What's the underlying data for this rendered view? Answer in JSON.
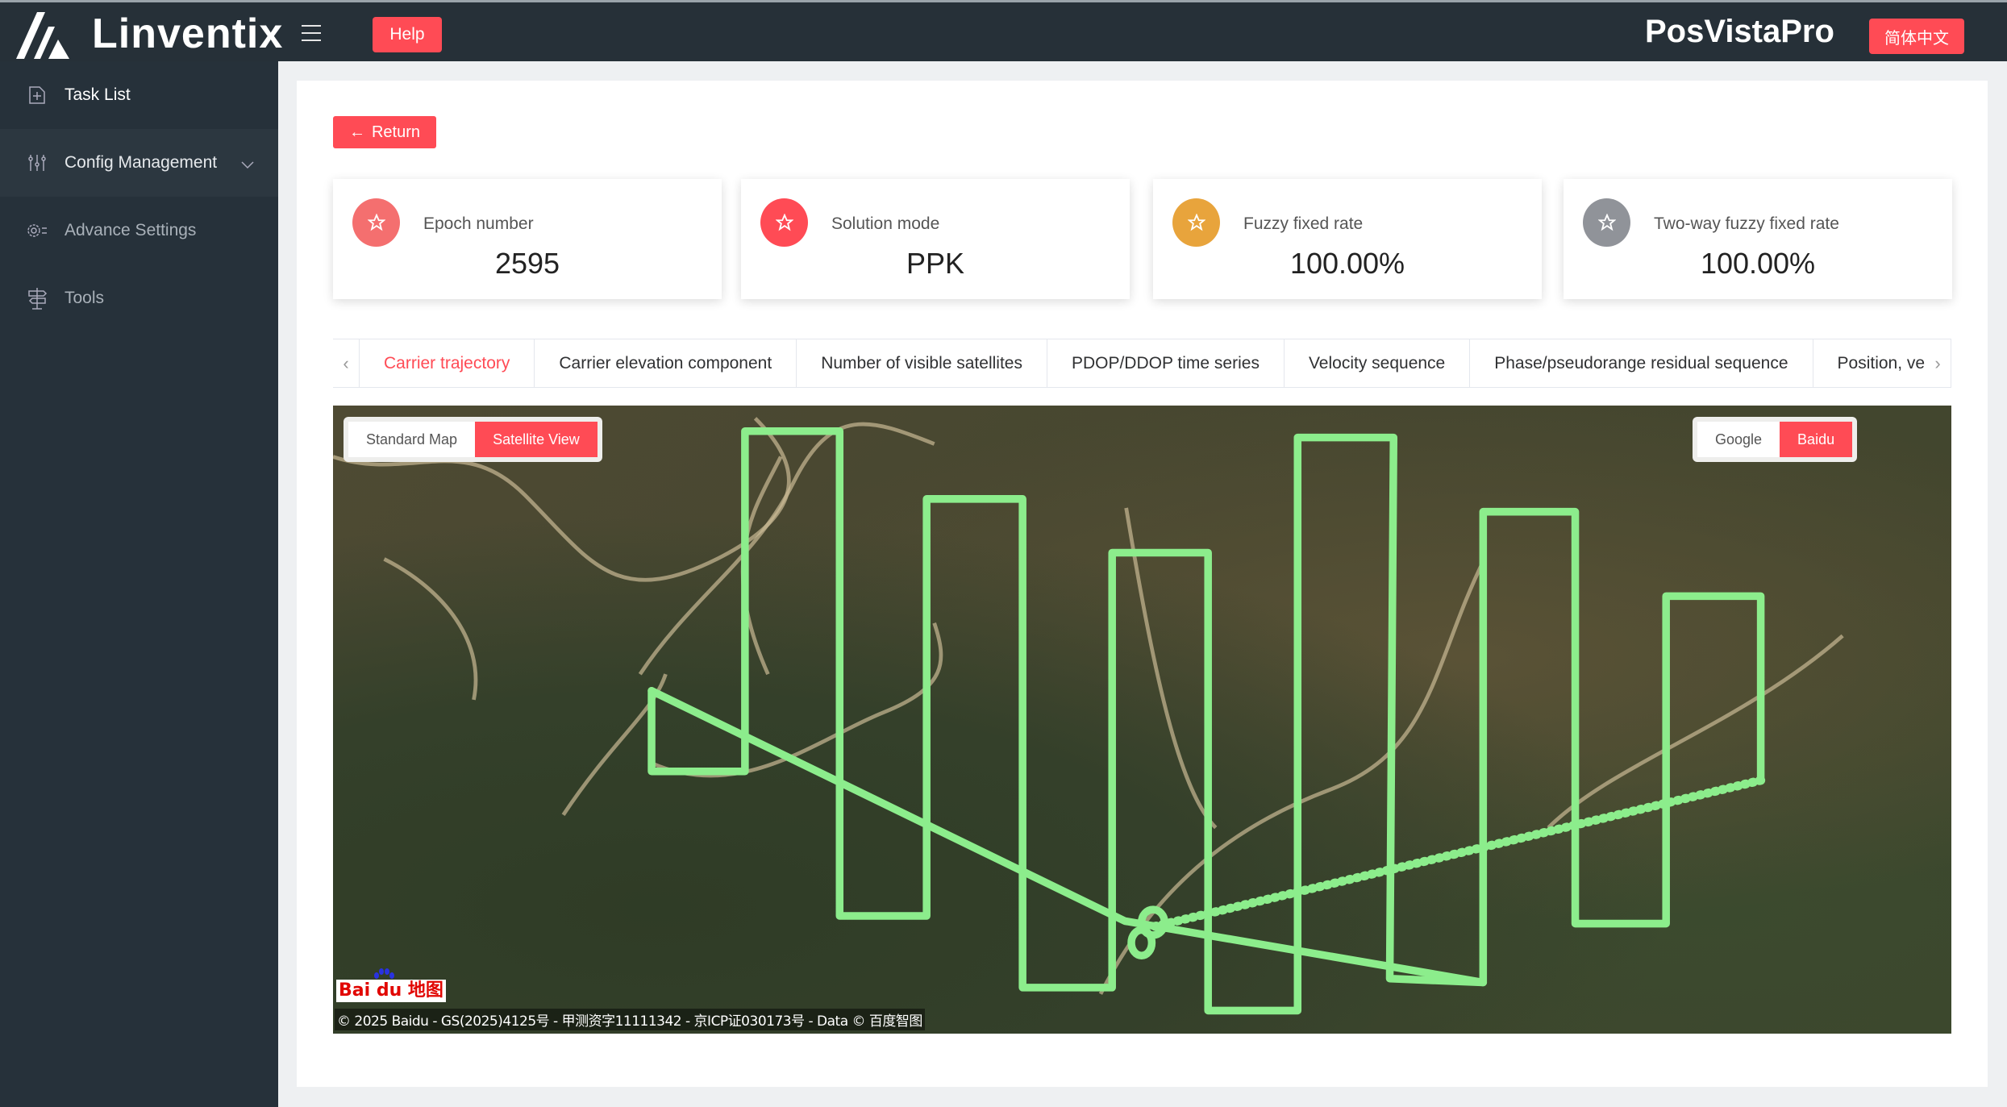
{
  "header": {
    "logo_text": "Linventix",
    "help_label": "Help",
    "app_title": "PosVistaPro",
    "language_label": "简体中文"
  },
  "sidebar": {
    "items": [
      {
        "label": "Task List",
        "icon": "file-plus-icon"
      },
      {
        "label": "Config Management",
        "icon": "sliders-icon"
      },
      {
        "label": "Advance Settings",
        "icon": "gear-list-icon"
      },
      {
        "label": "Tools",
        "icon": "signpost-icon"
      }
    ]
  },
  "main": {
    "return_label": "Return",
    "stats": [
      {
        "label": "Epoch number",
        "value": "2595",
        "color": "#f46f6f"
      },
      {
        "label": "Solution mode",
        "value": "PPK",
        "color": "#ff4b55"
      },
      {
        "label": "Fuzzy fixed rate",
        "value": "100.00%",
        "color": "#e8a43c"
      },
      {
        "label": "Two-way fuzzy fixed rate",
        "value": "100.00%",
        "color": "#909399"
      }
    ],
    "tabs": [
      "Carrier trajectory",
      "Carrier elevation component",
      "Number of visible satellites",
      "PDOP/DDOP time series",
      "Velocity sequence",
      "Phase/pseudorange residual sequence",
      "Position, vel"
    ],
    "active_tab": "Carrier trajectory",
    "map": {
      "view_modes": [
        "Standard Map",
        "Satellite View"
      ],
      "active_view": "Satellite View",
      "providers": [
        "Google",
        "Baidu"
      ],
      "active_provider": "Baidu",
      "baidu_logo_text": "Bai du 地图",
      "copyright": "© 2025 Baidu - GS(2025)4125号 - 甲测资字11111342 - 京ICP证030173号 - Data © 百度智图",
      "trajectory_color": "#8ced8c"
    }
  },
  "accent_color": "#ff4b55"
}
